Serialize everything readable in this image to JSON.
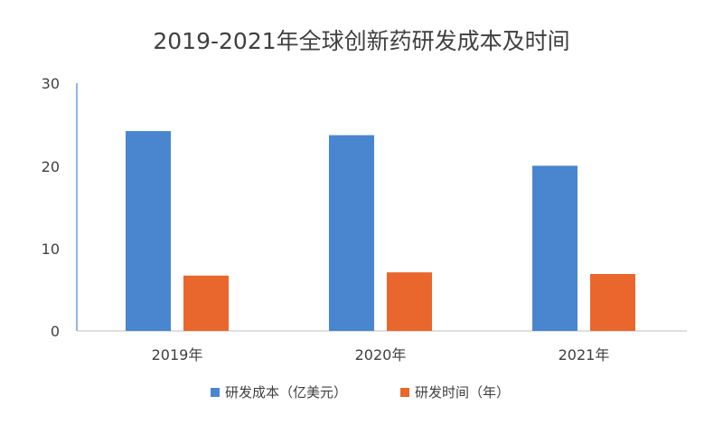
{
  "chart_data": {
    "type": "bar",
    "title": "2019-2021年全球创新药研发成本及时间",
    "categories": [
      "2019年",
      "2020年",
      "2021年"
    ],
    "series": [
      {
        "name": "研发成本（亿美元）",
        "values": [
          24.2,
          23.7,
          20.0
        ],
        "color": "#4a86cf"
      },
      {
        "name": "研发时间（年）",
        "values": [
          6.7,
          7.1,
          6.9
        ],
        "color": "#e9672c"
      }
    ],
    "yticks": [
      "0",
      "10",
      "20",
      "30"
    ],
    "ylim": [
      0,
      30
    ],
    "xlabel": "",
    "ylabel": "",
    "grid": false,
    "legend_position": "bottom"
  }
}
